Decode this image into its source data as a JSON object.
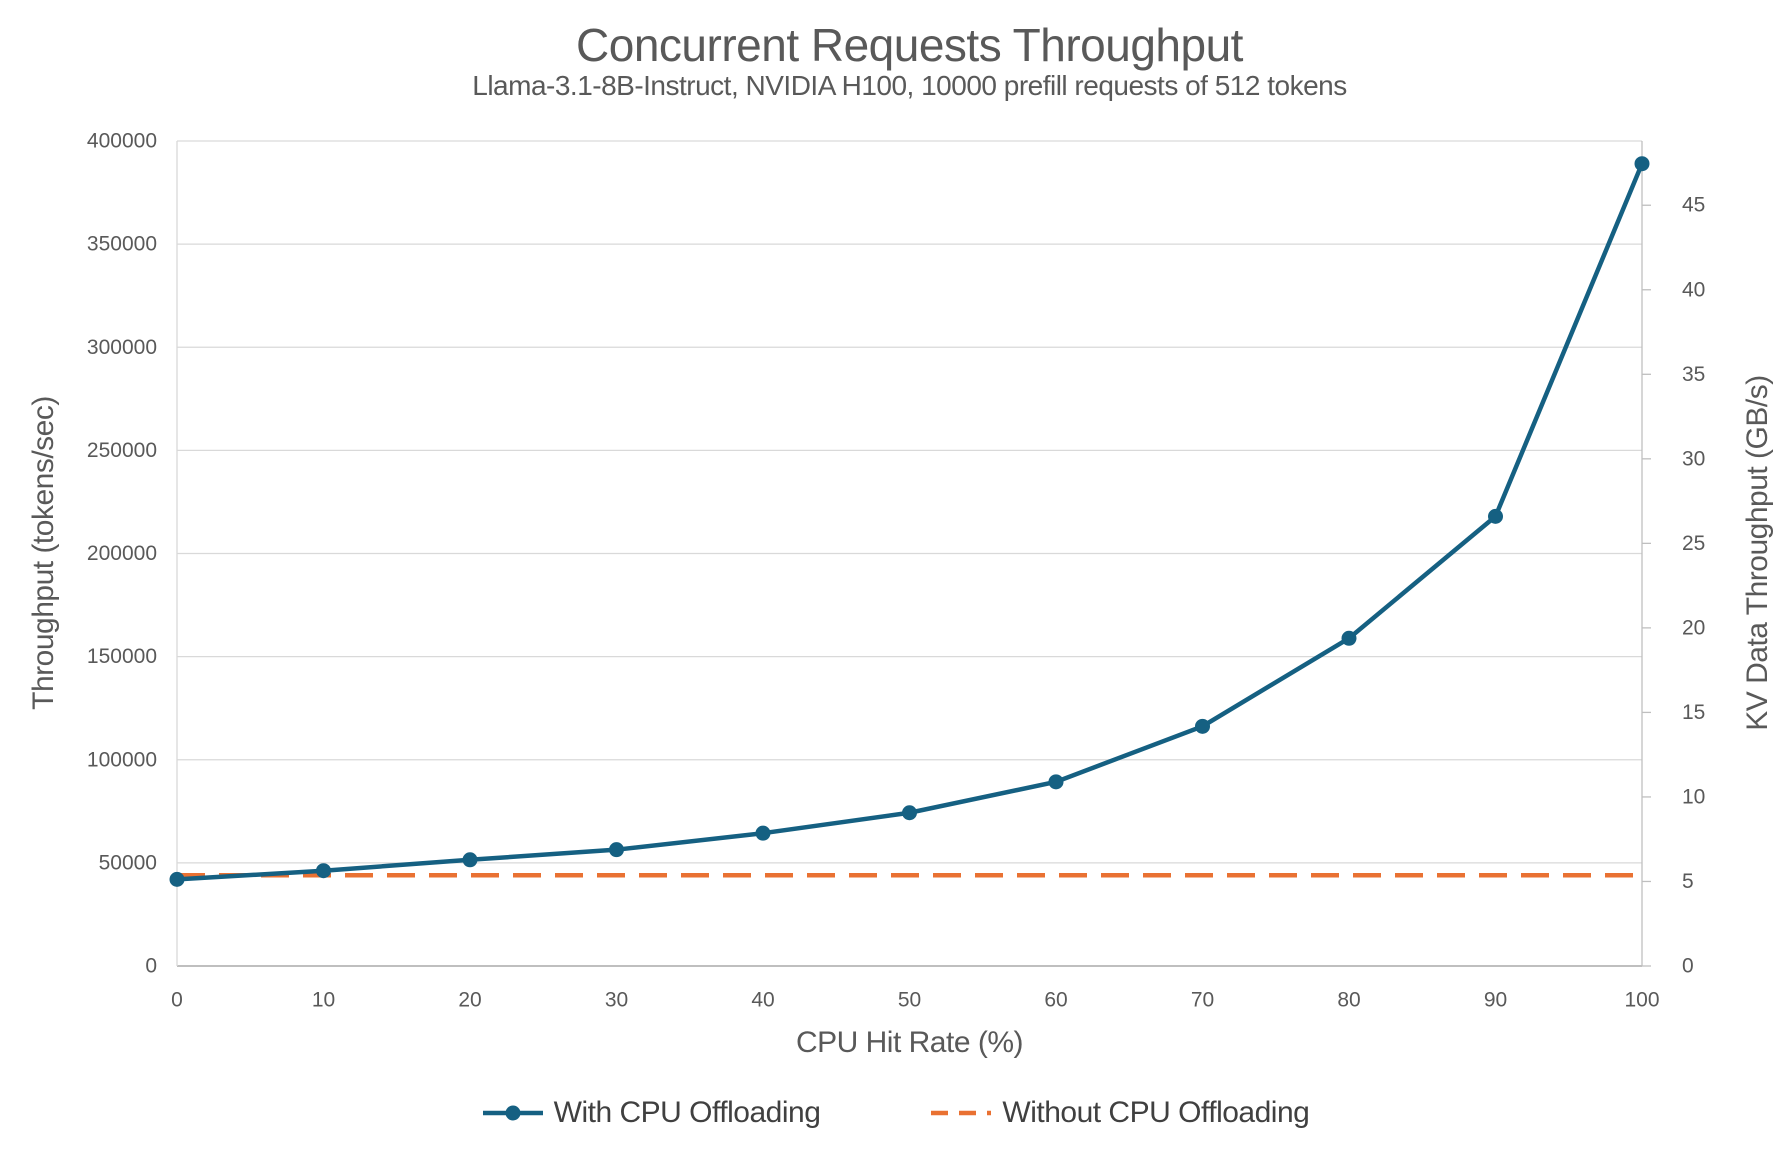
{
  "title": "Concurrent Requests Throughput",
  "subtitle": "Llama-3.1-8B-Instruct, NVIDIA H100, 10000 prefill requests of 512 tokens",
  "colors": {
    "accent_blue": "#156082",
    "accent_orange": "#E97132",
    "text": "#595959",
    "gridline": "#D9D9D9",
    "axis_line": "#BFBFBF"
  },
  "chart_data": {
    "type": "line",
    "title": "Concurrent Requests Throughput",
    "subtitle": "Llama-3.1-8B-Instruct, NVIDIA H100, 10000 prefill requests of 512 tokens",
    "xlabel": "CPU Hit Rate (%)",
    "ylabel_left": "Throughput (tokens/sec)",
    "ylabel_right": "KV Data Throughput (GB/s)",
    "x": [
      0,
      10,
      20,
      30,
      40,
      50,
      60,
      70,
      80,
      90,
      100
    ],
    "x_ticks": [
      0,
      10,
      20,
      30,
      40,
      50,
      60,
      70,
      80,
      90,
      100
    ],
    "y_left_axis": {
      "min": 0,
      "max": 400000,
      "ticks": [
        0,
        50000,
        100000,
        150000,
        200000,
        250000,
        300000,
        350000,
        400000
      ]
    },
    "y_right_axis": {
      "min": 0,
      "max": 48.8,
      "ticks": [
        0,
        5,
        10,
        15,
        20,
        25,
        30,
        35,
        40,
        45
      ]
    },
    "grid": "horizontal",
    "legend_position": "bottom",
    "series": [
      {
        "name": "With CPU Offloading",
        "color": "#156082",
        "line": "solid",
        "markers": true,
        "axis": "left",
        "values": [
          42000,
          46200,
          51500,
          56400,
          64400,
          74300,
          89300,
          116200,
          158900,
          218000,
          389000
        ]
      },
      {
        "name": "Without CPU Offloading",
        "color": "#E97132",
        "line": "dashed",
        "markers": false,
        "axis": "left",
        "values": [
          44000,
          44000,
          44000,
          44000,
          44000,
          44000,
          44000,
          44000,
          44000,
          44000,
          44000
        ]
      }
    ]
  }
}
